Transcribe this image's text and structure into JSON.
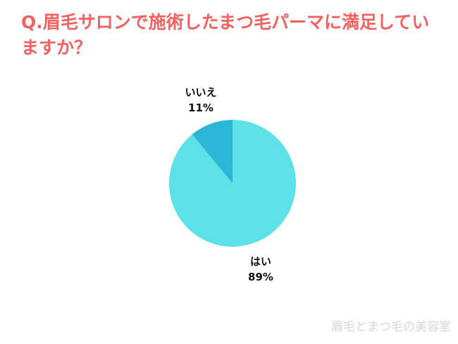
{
  "title": "Q.眉毛サロンで施術したまつ毛パーマに満足していますか？",
  "watermark": "眉毛とまつ毛の美容室",
  "chart_data": {
    "type": "pie",
    "title": "Q.眉毛サロンで施術したまつ毛パーマに満足していますか？",
    "slices": [
      {
        "label": "はい",
        "value": 89,
        "display": "89%",
        "color": "#5de1e6"
      },
      {
        "label": "いいえ",
        "value": 11,
        "display": "11%",
        "color": "#2bb5d6"
      }
    ]
  }
}
